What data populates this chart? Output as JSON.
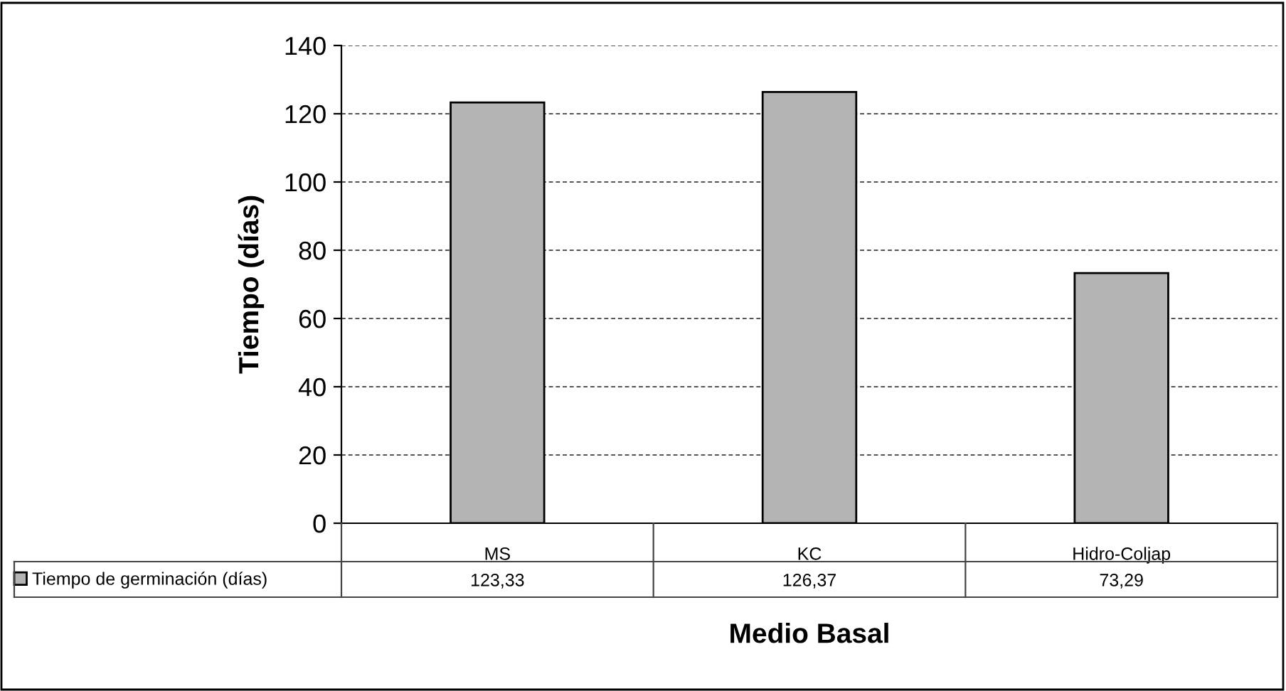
{
  "chart_data": {
    "type": "bar",
    "xlabel": "Medio Basal",
    "ylabel": "Tiempo (días)",
    "categories": [
      "MS",
      "KC",
      "Hidro-Coljap"
    ],
    "series": [
      {
        "name": "Tiempo de germinación (días)",
        "color": "#b4b4b4",
        "values": [
          123.33,
          126.37,
          73.29
        ],
        "value_labels": [
          "123,33",
          "126,37",
          "73,29"
        ]
      }
    ],
    "ylim": [
      0,
      140
    ],
    "yticks": [
      0,
      20,
      40,
      60,
      80,
      100,
      120,
      140
    ],
    "grid": "y",
    "legend": "bottom left"
  }
}
